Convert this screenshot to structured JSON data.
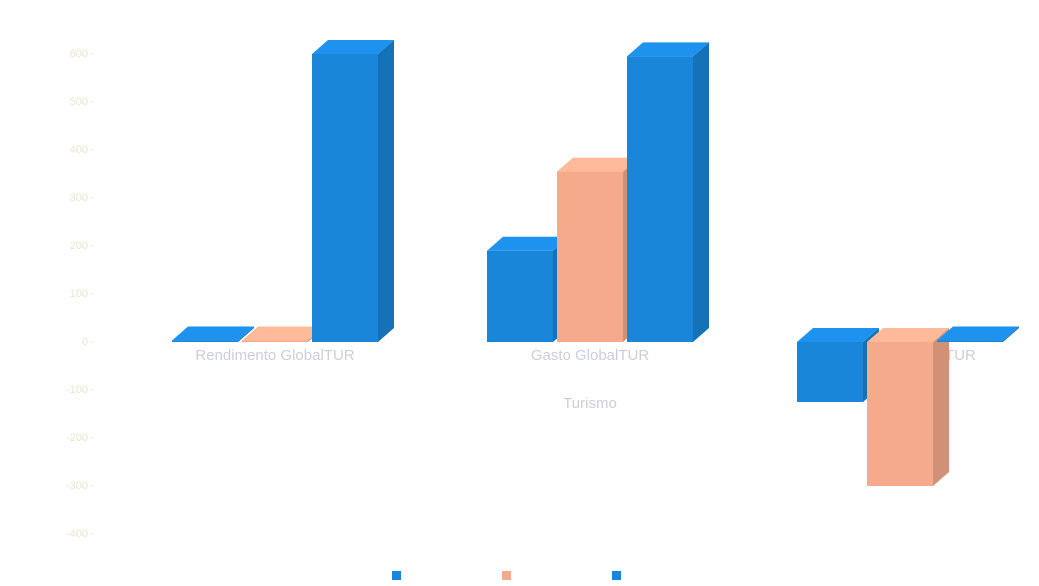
{
  "chart_data": {
    "type": "bar3d",
    "x_label": "Turismo",
    "categories": [
      "Rendimento GlobalTUR",
      "Gasto GlobalTUR",
      "Resultado LíquidoTUR"
    ],
    "series": [
      {
        "color": "#1a86d9",
        "values": [
          3,
          190,
          -125
        ]
      },
      {
        "color": "#f5aa8b",
        "values": [
          3,
          355,
          -300
        ]
      },
      {
        "color": "#1a86d9",
        "values": [
          600,
          595,
          3
        ]
      }
    ],
    "ylim": [
      -450,
      650
    ],
    "yticks": [
      -400,
      -300,
      -200,
      -100,
      0,
      100,
      200,
      300,
      400,
      500,
      600
    ],
    "grid": false
  }
}
